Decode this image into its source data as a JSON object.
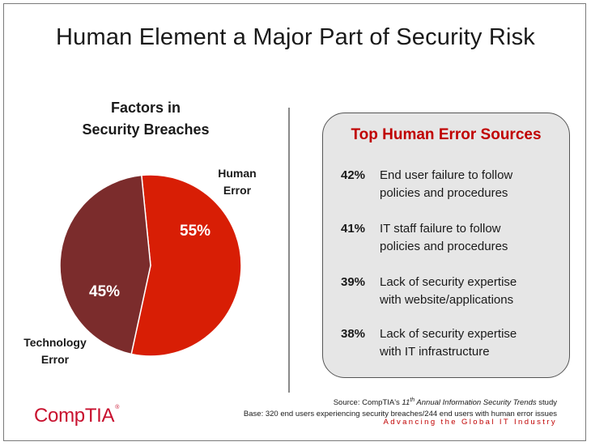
{
  "title": "Human Element a Major Part of Security Risk",
  "chart_data": {
    "type": "pie",
    "title_line1": "Factors in",
    "title_line2": "Security Breaches",
    "slices": [
      {
        "label_line1": "Human",
        "label_line2": "Error",
        "value": 55,
        "value_label": "55%",
        "color": "#d81e05"
      },
      {
        "label_line1": "Technology",
        "label_line2": "Error",
        "value": 45,
        "value_label": "45%",
        "color": "#7b2c2c"
      }
    ]
  },
  "panel": {
    "title": "Top Human Error Sources",
    "items": [
      {
        "pct": "42%",
        "line1": "End user failure to follow",
        "line2": "policies and procedures"
      },
      {
        "pct": "41%",
        "line1": "IT staff failure to follow",
        "line2": "policies and procedures"
      },
      {
        "pct": "39%",
        "line1": "Lack of security expertise",
        "line2": "with website/applications"
      },
      {
        "pct": "38%",
        "line1": "Lack of security expertise",
        "line2": "with IT infrastructure"
      }
    ]
  },
  "footer": {
    "source_prefix": "Source: CompTIA's ",
    "source_num": "11",
    "source_sup": "th",
    "source_italic": " Annual Information Security Trends",
    "source_suffix": " study",
    "base": "Base: 320 end users experiencing security breaches/244 end users with human error issues",
    "tagline": "Advancing the Global IT Industry",
    "logo": "CompTIA",
    "logo_mark": "®"
  },
  "colors": {
    "accent_red": "#c00000",
    "panel_bg": "#e6e6e6"
  }
}
